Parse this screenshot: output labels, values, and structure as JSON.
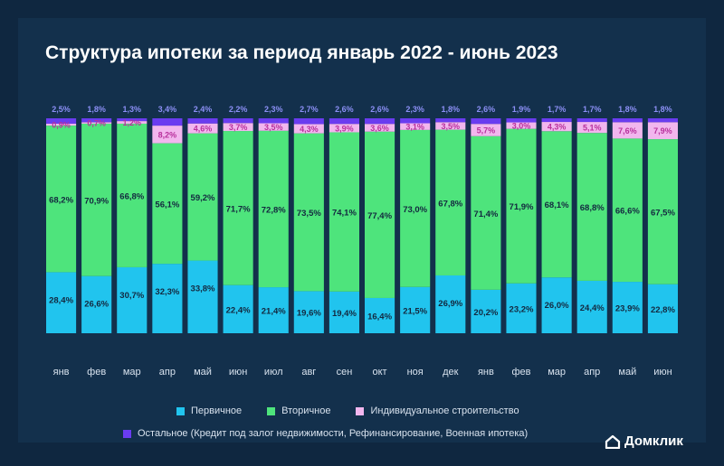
{
  "title": "Структура ипотеки за период январь 2022 - июнь 2023",
  "chart_data": {
    "type": "bar",
    "stacked": true,
    "percent": true,
    "categories": [
      "янв",
      "фев",
      "мар",
      "апр",
      "май",
      "июн",
      "июл",
      "авг",
      "сен",
      "окт",
      "ноя",
      "дек",
      "янв",
      "фев",
      "мар",
      "апр",
      "май",
      "июн"
    ],
    "series": [
      {
        "name": "Первичное",
        "color": "#21c4ee",
        "values": [
          28.4,
          26.6,
          30.7,
          32.3,
          33.8,
          22.4,
          21.4,
          19.6,
          19.4,
          16.4,
          21.5,
          26.9,
          20.2,
          23.2,
          26.0,
          24.4,
          23.9,
          22.8
        ],
        "labels": [
          "28,4%",
          "26,6%",
          "30,7%",
          "32,3%",
          "33,8%",
          "22,4%",
          "21,4%",
          "19,6%",
          "19,4%",
          "16,4%",
          "21,5%",
          "26,9%",
          "20,2%",
          "23,2%",
          "26,0%",
          "24,4%",
          "23,9%",
          "22,8%"
        ]
      },
      {
        "name": "Вторичное",
        "color": "#4ee47c",
        "values": [
          68.2,
          70.9,
          66.8,
          56.1,
          59.2,
          71.7,
          72.8,
          73.5,
          74.1,
          77.4,
          73.0,
          67.8,
          71.4,
          71.9,
          68.1,
          68.8,
          66.6,
          67.5
        ],
        "labels": [
          "68,2%",
          "70,9%",
          "66,8%",
          "56,1%",
          "59,2%",
          "71,7%",
          "72,8%",
          "73,5%",
          "74,1%",
          "77,4%",
          "73,0%",
          "67,8%",
          "71,4%",
          "71,9%",
          "68,1%",
          "68,8%",
          "66,6%",
          "67,5%"
        ]
      },
      {
        "name": "Индивидуальное строительство",
        "color": "#f2b6ee",
        "values": [
          0.9,
          0.7,
          1.2,
          8.2,
          4.6,
          3.7,
          3.5,
          4.3,
          3.9,
          3.6,
          3.1,
          3.5,
          5.7,
          3.0,
          4.3,
          5.1,
          7.6,
          7.9
        ],
        "labels": [
          "0,9%",
          "0,7%",
          "1,2%",
          "8,2%",
          "4,6%",
          "3,7%",
          "3,5%",
          "4,3%",
          "3,9%",
          "3,6%",
          "3,1%",
          "3,5%",
          "5,7%",
          "3,0%",
          "4,3%",
          "5,1%",
          "7,6%",
          "7,9%"
        ]
      },
      {
        "name": "Остальное (Кредит под залог недвижимости, Рефинансирование, Военная ипотека)",
        "color": "#6a3cf0",
        "values": [
          2.5,
          1.8,
          1.3,
          3.4,
          2.4,
          2.2,
          2.3,
          2.7,
          2.6,
          2.6,
          2.3,
          1.8,
          2.6,
          1.9,
          1.7,
          1.7,
          1.8,
          1.8
        ],
        "labels": [
          "2,5%",
          "1,8%",
          "1,3%",
          "3,4%",
          "2,4%",
          "2,2%",
          "2,3%",
          "2,7%",
          "2,6%",
          "2,6%",
          "2,3%",
          "1,8%",
          "2,6%",
          "1,9%",
          "1,7%",
          "1,7%",
          "1,8%",
          "1,8%"
        ]
      }
    ],
    "ylim": [
      0,
      100
    ],
    "grid": false,
    "legend_position": "bottom"
  },
  "logo": {
    "text": "Домклик",
    "icon": "house-icon"
  }
}
